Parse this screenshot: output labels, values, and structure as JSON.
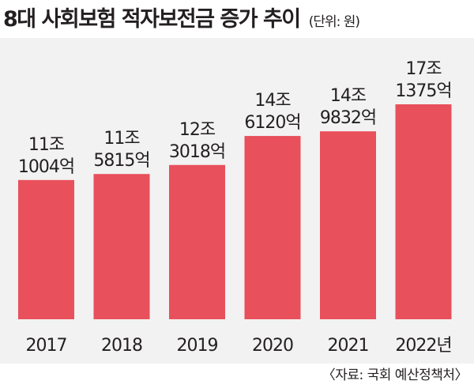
{
  "title": "8대 사회보험 적자보전금 증가 추이",
  "unit": "(단위: 원)",
  "source": "〈자료: 국회 예산정책처〉",
  "chart_data": {
    "type": "bar",
    "title": "8대 사회보험 적자보전금 증가 추이",
    "unit": "(단위: 원)",
    "categories": [
      "2017",
      "2018",
      "2019",
      "2020",
      "2021",
      "2022년"
    ],
    "values": [
      111004,
      115815,
      123018,
      146120,
      149832,
      171375
    ],
    "value_unit": "억원",
    "label_line1": [
      "11조",
      "11조",
      "12조",
      "14조",
      "14조",
      "17조"
    ],
    "label_line2": [
      "1004억",
      "5815억",
      "3018억",
      "6120억",
      "9832억",
      "1375억"
    ],
    "ylim": [
      0,
      180000
    ],
    "bar_color": "#e8505b",
    "background_color": "#f2f2f2",
    "grid": false,
    "legend": "none"
  }
}
